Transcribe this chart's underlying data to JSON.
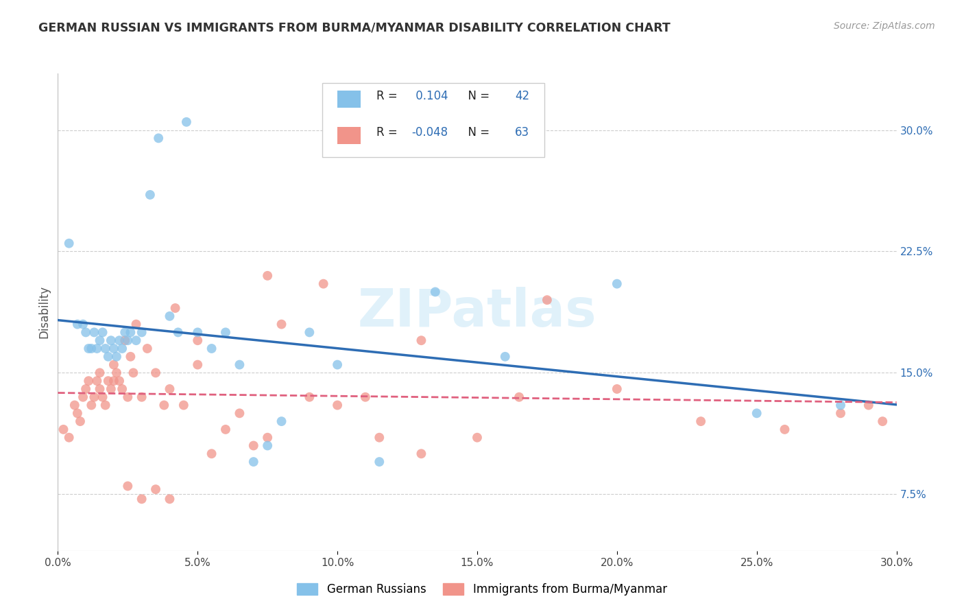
{
  "title": "GERMAN RUSSIAN VS IMMIGRANTS FROM BURMA/MYANMAR DISABILITY CORRELATION CHART",
  "source": "Source: ZipAtlas.com",
  "ylabel": "Disability",
  "y_tick_labels": [
    "7.5%",
    "15.0%",
    "22.5%",
    "30.0%"
  ],
  "y_tick_values": [
    0.075,
    0.15,
    0.225,
    0.3
  ],
  "x_range": [
    0.0,
    0.3
  ],
  "y_range": [
    0.04,
    0.335
  ],
  "watermark": "ZIPatlas",
  "legend": {
    "R1": "0.104",
    "N1": "42",
    "R2": "-0.048",
    "N2": "63"
  },
  "blue_color": "#85C1E9",
  "pink_color": "#F1948A",
  "trend_blue": "#2E6DB4",
  "trend_pink": "#E0607E",
  "blue_scatter": {
    "x": [
      0.004,
      0.007,
      0.009,
      0.01,
      0.011,
      0.012,
      0.013,
      0.014,
      0.015,
      0.016,
      0.017,
      0.018,
      0.019,
      0.02,
      0.021,
      0.022,
      0.023,
      0.024,
      0.025,
      0.026,
      0.028,
      0.03,
      0.033,
      0.036,
      0.04,
      0.043,
      0.046,
      0.05,
      0.055,
      0.06,
      0.065,
      0.07,
      0.075,
      0.08,
      0.09,
      0.1,
      0.115,
      0.135,
      0.16,
      0.2,
      0.25,
      0.28
    ],
    "y": [
      0.23,
      0.18,
      0.18,
      0.175,
      0.165,
      0.165,
      0.175,
      0.165,
      0.17,
      0.175,
      0.165,
      0.16,
      0.17,
      0.165,
      0.16,
      0.17,
      0.165,
      0.175,
      0.17,
      0.175,
      0.17,
      0.175,
      0.26,
      0.295,
      0.185,
      0.175,
      0.305,
      0.175,
      0.165,
      0.175,
      0.155,
      0.095,
      0.105,
      0.12,
      0.175,
      0.155,
      0.095,
      0.2,
      0.16,
      0.205,
      0.125,
      0.13
    ]
  },
  "pink_scatter": {
    "x": [
      0.002,
      0.004,
      0.006,
      0.007,
      0.008,
      0.009,
      0.01,
      0.011,
      0.012,
      0.013,
      0.014,
      0.015,
      0.016,
      0.017,
      0.018,
      0.019,
      0.02,
      0.021,
      0.022,
      0.023,
      0.024,
      0.025,
      0.026,
      0.027,
      0.028,
      0.03,
      0.032,
      0.035,
      0.038,
      0.04,
      0.042,
      0.045,
      0.05,
      0.055,
      0.06,
      0.065,
      0.07,
      0.075,
      0.08,
      0.09,
      0.1,
      0.115,
      0.13,
      0.15,
      0.165,
      0.175,
      0.2,
      0.23,
      0.26,
      0.28,
      0.29,
      0.295,
      0.05,
      0.075,
      0.095,
      0.11,
      0.13,
      0.015,
      0.02,
      0.025,
      0.03,
      0.035,
      0.04
    ],
    "y": [
      0.115,
      0.11,
      0.13,
      0.125,
      0.12,
      0.135,
      0.14,
      0.145,
      0.13,
      0.135,
      0.145,
      0.14,
      0.135,
      0.13,
      0.145,
      0.14,
      0.155,
      0.15,
      0.145,
      0.14,
      0.17,
      0.135,
      0.16,
      0.15,
      0.18,
      0.135,
      0.165,
      0.15,
      0.13,
      0.14,
      0.19,
      0.13,
      0.155,
      0.1,
      0.115,
      0.125,
      0.105,
      0.11,
      0.18,
      0.135,
      0.13,
      0.11,
      0.1,
      0.11,
      0.135,
      0.195,
      0.14,
      0.12,
      0.115,
      0.125,
      0.13,
      0.12,
      0.17,
      0.21,
      0.205,
      0.135,
      0.17,
      0.15,
      0.145,
      0.08,
      0.072,
      0.078,
      0.072
    ]
  }
}
